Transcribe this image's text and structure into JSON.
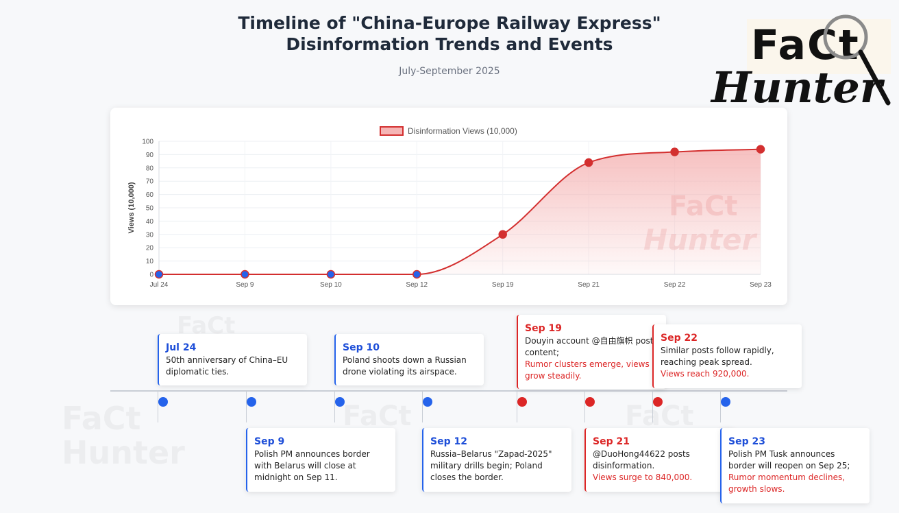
{
  "header": {
    "title": "Timeline of \"China-Europe Railway Express\" Disinformation Trends and Events",
    "subtitle": "July-September 2025"
  },
  "logo": {
    "line1": "FaCt",
    "line2": "Hunter"
  },
  "watermark": {
    "line1": "FaCt",
    "line2": "Hunter"
  },
  "chart_data": {
    "type": "line",
    "x": [
      "Jul 24",
      "Sep 9",
      "Sep 10",
      "Sep 12",
      "Sep 19",
      "Sep 21",
      "Sep 22",
      "Sep 23"
    ],
    "series": [
      {
        "name": "Disinformation Views (10,000)",
        "values": [
          0,
          0,
          0,
          0,
          30,
          84,
          92,
          94
        ],
        "color": "#d32f2f",
        "fill": "#f5b5b5"
      }
    ],
    "ylabel": "Views (10,000)",
    "xlabel": "",
    "ylim": [
      0,
      100
    ],
    "yticks": [
      0,
      10,
      20,
      30,
      40,
      50,
      60,
      70,
      80,
      90,
      100
    ],
    "grid": true,
    "legend": "top-center",
    "point_colors": [
      "#2563eb",
      "#2563eb",
      "#2563eb",
      "#2563eb",
      "#d32f2f",
      "#d32f2f",
      "#d32f2f",
      "#d32f2f"
    ]
  },
  "timeline": {
    "colors": {
      "blue": "#2563eb",
      "red": "#dc2626"
    },
    "events": [
      {
        "date": "Jul 24",
        "text": "50th anniversary of China–EU diplomatic ties.",
        "note": "",
        "color": "blue"
      },
      {
        "date": "Sep 9",
        "text": "Polish PM announces border with Belarus will close at midnight on Sep 11.",
        "note": "",
        "color": "blue"
      },
      {
        "date": "Sep 10",
        "text": "Poland shoots down a Russian drone violating its airspace.",
        "note": "",
        "color": "blue"
      },
      {
        "date": "Sep 12",
        "text": "Russia–Belarus \"Zapad-2025\" military drills begin; Poland closes the border.",
        "note": "",
        "color": "blue"
      },
      {
        "date": "Sep 19",
        "text": "Douyin account @自由旗帜 posts content;",
        "note": "Rumor clusters emerge, views grow steadily.",
        "color": "red"
      },
      {
        "date": "Sep 21",
        "text": "@DuoHong44622 posts disinformation.",
        "note": "Views surge to 840,000.",
        "color": "red"
      },
      {
        "date": "Sep 22",
        "text": "Similar posts follow rapidly, reaching peak spread.",
        "note": "Views reach 920,000.",
        "color": "red"
      },
      {
        "date": "Sep 23",
        "text": "Polish PM Tusk announces border will reopen on Sep 25;",
        "note": "Rumor momentum declines, growth slows.",
        "color": "blue"
      }
    ]
  }
}
